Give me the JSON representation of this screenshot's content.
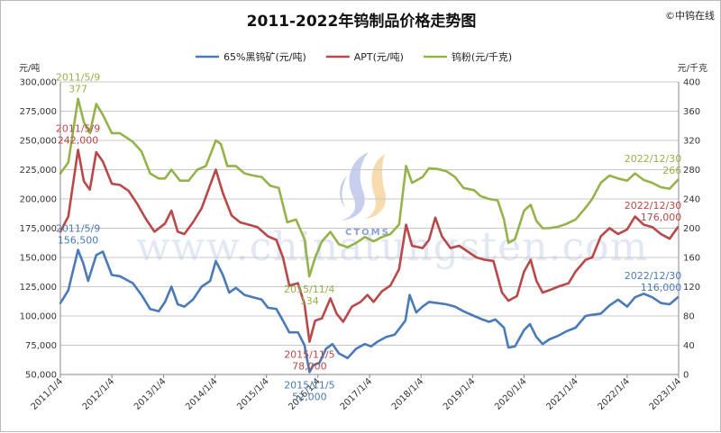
{
  "header": {
    "title": "2011-2022年钨制品价格走势图",
    "source": "©中钨在线"
  },
  "watermark": {
    "url": "www.chinatungsten.com",
    "brand": "CTOMS"
  },
  "axes": {
    "left_unit": "元/吨",
    "right_unit": "元/千克"
  },
  "chart_data": {
    "type": "line",
    "title": "2011-2022年钨制品价格走势图",
    "x_ticks": [
      "2011/1/4",
      "2012/1/4",
      "2013/1/4",
      "2014/1/4",
      "2015/1/4",
      "2016/1/4",
      "2017/1/4",
      "2018/1/4",
      "2019/1/4",
      "2020/1/4",
      "2021/1/4",
      "2022/1/4",
      "2023/1/4"
    ],
    "y_left": {
      "label": "元/吨",
      "min": 50000,
      "max": 300000,
      "step": 25000,
      "ticks": [
        "50,000",
        "75,000",
        "100,000",
        "125,000",
        "150,000",
        "175,000",
        "200,000",
        "225,000",
        "250,000",
        "275,000",
        "300,000"
      ]
    },
    "y_right": {
      "label": "元/千克",
      "min": 0,
      "max": 400,
      "step": 40,
      "ticks": [
        "0",
        "40",
        "80",
        "120",
        "160",
        "200",
        "240",
        "280",
        "320",
        "360",
        "400"
      ]
    },
    "grid": "horizontal",
    "legend_position": "top",
    "series": [
      {
        "name": "65%黑钨矿(元/吨)",
        "axis": "left",
        "color": "#4a7ab8",
        "points": [
          [
            "2011-01-04",
            111000
          ],
          [
            "2011-03-01",
            122000
          ],
          [
            "2011-05-09",
            156500
          ],
          [
            "2011-06-15",
            145000
          ],
          [
            "2011-07-20",
            130000
          ],
          [
            "2011-09-15",
            152000
          ],
          [
            "2011-11-01",
            155000
          ],
          [
            "2012-01-04",
            135000
          ],
          [
            "2012-03-01",
            134000
          ],
          [
            "2012-06-01",
            128000
          ],
          [
            "2012-08-01",
            118000
          ],
          [
            "2012-10-01",
            106000
          ],
          [
            "2012-12-01",
            104000
          ],
          [
            "2013-01-15",
            112000
          ],
          [
            "2013-03-01",
            125000
          ],
          [
            "2013-04-15",
            110000
          ],
          [
            "2013-06-01",
            108000
          ],
          [
            "2013-08-01",
            114000
          ],
          [
            "2013-10-01",
            125000
          ],
          [
            "2013-12-01",
            130000
          ],
          [
            "2014-01-10",
            147000
          ],
          [
            "2014-03-01",
            135000
          ],
          [
            "2014-04-15",
            120000
          ],
          [
            "2014-06-01",
            124000
          ],
          [
            "2014-08-01",
            118000
          ],
          [
            "2014-10-01",
            116000
          ],
          [
            "2014-12-01",
            114000
          ],
          [
            "2015-01-15",
            107000
          ],
          [
            "2015-03-15",
            106000
          ],
          [
            "2015-05-01",
            96000
          ],
          [
            "2015-06-15",
            86000
          ],
          [
            "2015-08-15",
            86000
          ],
          [
            "2015-10-01",
            75000
          ],
          [
            "2015-11-05",
            52000
          ],
          [
            "2015-12-01",
            58000
          ],
          [
            "2016-01-15",
            60000
          ],
          [
            "2016-03-01",
            72000
          ],
          [
            "2016-04-15",
            76000
          ],
          [
            "2016-06-01",
            68000
          ],
          [
            "2016-08-01",
            64000
          ],
          [
            "2016-10-01",
            72000
          ],
          [
            "2016-12-01",
            76000
          ],
          [
            "2017-01-15",
            74000
          ],
          [
            "2017-03-01",
            78000
          ],
          [
            "2017-05-01",
            82000
          ],
          [
            "2017-07-01",
            84000
          ],
          [
            "2017-09-15",
            96000
          ],
          [
            "2017-10-15",
            118000
          ],
          [
            "2017-12-01",
            103000
          ],
          [
            "2018-01-15",
            108000
          ],
          [
            "2018-03-01",
            112000
          ],
          [
            "2018-05-01",
            111000
          ],
          [
            "2018-07-01",
            110000
          ],
          [
            "2018-09-01",
            108000
          ],
          [
            "2018-11-01",
            104000
          ],
          [
            "2019-01-15",
            100000
          ],
          [
            "2019-03-15",
            97000
          ],
          [
            "2019-05-01",
            95000
          ],
          [
            "2019-06-15",
            97000
          ],
          [
            "2019-08-15",
            90000
          ],
          [
            "2019-09-15",
            73000
          ],
          [
            "2019-11-01",
            74000
          ],
          [
            "2020-01-04",
            88000
          ],
          [
            "2020-02-15",
            93000
          ],
          [
            "2020-04-01",
            82000
          ],
          [
            "2020-05-15",
            76000
          ],
          [
            "2020-07-01",
            80000
          ],
          [
            "2020-09-01",
            83000
          ],
          [
            "2020-11-01",
            87000
          ],
          [
            "2021-01-04",
            90000
          ],
          [
            "2021-03-15",
            100000
          ],
          [
            "2021-05-01",
            101000
          ],
          [
            "2021-07-01",
            102000
          ],
          [
            "2021-09-01",
            109000
          ],
          [
            "2021-11-01",
            114000
          ],
          [
            "2022-01-04",
            108000
          ],
          [
            "2022-03-01",
            116000
          ],
          [
            "2022-05-01",
            119000
          ],
          [
            "2022-07-01",
            116000
          ],
          [
            "2022-09-01",
            111000
          ],
          [
            "2022-11-01",
            110000
          ],
          [
            "2022-12-30",
            116000
          ]
        ]
      },
      {
        "name": "APT(元/吨)",
        "axis": "left",
        "color": "#b94848",
        "points": [
          [
            "2011-01-04",
            172000
          ],
          [
            "2011-03-01",
            185000
          ],
          [
            "2011-05-09",
            242000
          ],
          [
            "2011-06-20",
            215000
          ],
          [
            "2011-08-01",
            208000
          ],
          [
            "2011-09-15",
            240000
          ],
          [
            "2011-11-01",
            232000
          ],
          [
            "2012-01-04",
            213000
          ],
          [
            "2012-03-01",
            212000
          ],
          [
            "2012-05-01",
            207000
          ],
          [
            "2012-07-01",
            196000
          ],
          [
            "2012-09-01",
            183000
          ],
          [
            "2012-11-01",
            172000
          ],
          [
            "2013-01-15",
            179000
          ],
          [
            "2013-03-01",
            190000
          ],
          [
            "2013-04-15",
            172000
          ],
          [
            "2013-06-01",
            170000
          ],
          [
            "2013-08-01",
            180000
          ],
          [
            "2013-10-01",
            192000
          ],
          [
            "2013-12-01",
            212000
          ],
          [
            "2014-01-10",
            225000
          ],
          [
            "2014-03-01",
            205000
          ],
          [
            "2014-05-01",
            186000
          ],
          [
            "2014-07-01",
            180000
          ],
          [
            "2014-09-01",
            178000
          ],
          [
            "2014-11-01",
            176000
          ],
          [
            "2015-01-15",
            168000
          ],
          [
            "2015-03-15",
            165000
          ],
          [
            "2015-05-01",
            150000
          ],
          [
            "2015-06-15",
            126000
          ],
          [
            "2015-08-15",
            128000
          ],
          [
            "2015-10-01",
            110000
          ],
          [
            "2015-11-05",
            78000
          ],
          [
            "2015-12-15",
            96000
          ],
          [
            "2016-02-01",
            98000
          ],
          [
            "2016-04-01",
            115000
          ],
          [
            "2016-05-15",
            102000
          ],
          [
            "2016-07-01",
            95000
          ],
          [
            "2016-09-01",
            108000
          ],
          [
            "2016-11-01",
            112000
          ],
          [
            "2016-12-20",
            118000
          ],
          [
            "2017-02-01",
            112000
          ],
          [
            "2017-04-01",
            121000
          ],
          [
            "2017-06-01",
            126000
          ],
          [
            "2017-08-01",
            140000
          ],
          [
            "2017-09-20",
            178000
          ],
          [
            "2017-11-01",
            160000
          ],
          [
            "2018-01-15",
            158000
          ],
          [
            "2018-03-01",
            165000
          ],
          [
            "2018-04-15",
            184000
          ],
          [
            "2018-06-01",
            168000
          ],
          [
            "2018-08-01",
            158000
          ],
          [
            "2018-10-01",
            160000
          ],
          [
            "2018-12-01",
            155000
          ],
          [
            "2019-02-01",
            150000
          ],
          [
            "2019-04-01",
            148000
          ],
          [
            "2019-06-01",
            147000
          ],
          [
            "2019-08-01",
            120000
          ],
          [
            "2019-09-15",
            113000
          ],
          [
            "2019-11-15",
            117000
          ],
          [
            "2020-01-04",
            138000
          ],
          [
            "2020-02-20",
            148000
          ],
          [
            "2020-04-01",
            130000
          ],
          [
            "2020-05-15",
            120000
          ],
          [
            "2020-07-01",
            122000
          ],
          [
            "2020-09-01",
            125000
          ],
          [
            "2020-11-15",
            128000
          ],
          [
            "2021-01-04",
            138000
          ],
          [
            "2021-03-15",
            148000
          ],
          [
            "2021-05-01",
            150000
          ],
          [
            "2021-07-01",
            168000
          ],
          [
            "2021-09-01",
            175000
          ],
          [
            "2021-11-01",
            170000
          ],
          [
            "2022-01-04",
            174000
          ],
          [
            "2022-03-01",
            185000
          ],
          [
            "2022-05-01",
            178000
          ],
          [
            "2022-07-01",
            176000
          ],
          [
            "2022-09-01",
            170000
          ],
          [
            "2022-11-01",
            166000
          ],
          [
            "2022-12-30",
            176000
          ]
        ]
      },
      {
        "name": "钨粉(元/千克)",
        "axis": "right",
        "color": "#94b34a",
        "points": [
          [
            "2011-01-04",
            275
          ],
          [
            "2011-03-01",
            290
          ],
          [
            "2011-05-09",
            377
          ],
          [
            "2011-06-20",
            345
          ],
          [
            "2011-08-01",
            330
          ],
          [
            "2011-09-15",
            370
          ],
          [
            "2011-11-01",
            355
          ],
          [
            "2012-01-04",
            330
          ],
          [
            "2012-03-01",
            330
          ],
          [
            "2012-06-01",
            318
          ],
          [
            "2012-08-01",
            305
          ],
          [
            "2012-10-01",
            275
          ],
          [
            "2012-12-01",
            268
          ],
          [
            "2013-01-15",
            268
          ],
          [
            "2013-03-01",
            280
          ],
          [
            "2013-05-01",
            265
          ],
          [
            "2013-07-01",
            265
          ],
          [
            "2013-09-01",
            280
          ],
          [
            "2013-11-01",
            285
          ],
          [
            "2014-01-10",
            320
          ],
          [
            "2014-02-15",
            315
          ],
          [
            "2014-04-01",
            285
          ],
          [
            "2014-06-01",
            285
          ],
          [
            "2014-08-01",
            275
          ],
          [
            "2014-10-01",
            272
          ],
          [
            "2014-12-01",
            270
          ],
          [
            "2015-02-01",
            258
          ],
          [
            "2015-04-01",
            255
          ],
          [
            "2015-06-01",
            208
          ],
          [
            "2015-08-01",
            212
          ],
          [
            "2015-10-01",
            185
          ],
          [
            "2015-11-04",
            134
          ],
          [
            "2015-12-15",
            160
          ],
          [
            "2016-02-01",
            182
          ],
          [
            "2016-04-01",
            195
          ],
          [
            "2016-06-01",
            178
          ],
          [
            "2016-08-01",
            174
          ],
          [
            "2016-10-01",
            180
          ],
          [
            "2016-12-01",
            188
          ],
          [
            "2017-02-01",
            182
          ],
          [
            "2017-04-01",
            188
          ],
          [
            "2017-06-01",
            192
          ],
          [
            "2017-08-01",
            205
          ],
          [
            "2017-09-20",
            285
          ],
          [
            "2017-11-01",
            262
          ],
          [
            "2018-01-15",
            270
          ],
          [
            "2018-03-01",
            282
          ],
          [
            "2018-05-01",
            281
          ],
          [
            "2018-07-01",
            278
          ],
          [
            "2018-09-01",
            270
          ],
          [
            "2018-11-01",
            255
          ],
          [
            "2019-01-15",
            252
          ],
          [
            "2019-03-01",
            244
          ],
          [
            "2019-05-01",
            240
          ],
          [
            "2019-07-01",
            238
          ],
          [
            "2019-08-15",
            212
          ],
          [
            "2019-09-15",
            180
          ],
          [
            "2019-11-01",
            185
          ],
          [
            "2020-01-04",
            224
          ],
          [
            "2020-02-20",
            232
          ],
          [
            "2020-04-01",
            210
          ],
          [
            "2020-05-15",
            200
          ],
          [
            "2020-07-01",
            200
          ],
          [
            "2020-09-01",
            202
          ],
          [
            "2020-11-01",
            206
          ],
          [
            "2021-01-04",
            212
          ],
          [
            "2021-03-15",
            228
          ],
          [
            "2021-05-01",
            240
          ],
          [
            "2021-07-01",
            262
          ],
          [
            "2021-09-01",
            272
          ],
          [
            "2021-11-01",
            268
          ],
          [
            "2022-01-04",
            265
          ],
          [
            "2022-03-01",
            275
          ],
          [
            "2022-05-01",
            266
          ],
          [
            "2022-07-01",
            262
          ],
          [
            "2022-09-01",
            256
          ],
          [
            "2022-11-01",
            254
          ],
          [
            "2022-12-30",
            266
          ]
        ]
      }
    ],
    "annotations": [
      {
        "series": 2,
        "date": "2011-05-09",
        "lines": [
          "2011/5/9",
          "377"
        ]
      },
      {
        "series": 1,
        "date": "2011-05-09",
        "lines": [
          "2011/5/9",
          "242,000"
        ]
      },
      {
        "series": 0,
        "date": "2011-05-09",
        "lines": [
          "2011/5/9",
          "156,500"
        ]
      },
      {
        "series": 2,
        "date": "2015-11-04",
        "lines": [
          "2015/11/4",
          "134"
        ]
      },
      {
        "series": 1,
        "date": "2015-11-05",
        "lines": [
          "2015/11/5",
          "78,000"
        ]
      },
      {
        "series": 0,
        "date": "2015-11-05",
        "lines": [
          "2015/11/5",
          "52,000"
        ]
      },
      {
        "series": 2,
        "date": "2022-12-30",
        "lines": [
          "2022/12/30",
          "266"
        ]
      },
      {
        "series": 1,
        "date": "2022-12-30",
        "lines": [
          "2022/12/30",
          "176,000"
        ]
      },
      {
        "series": 0,
        "date": "2022-12-30",
        "lines": [
          "2022/12/30",
          "116,000"
        ]
      }
    ]
  }
}
